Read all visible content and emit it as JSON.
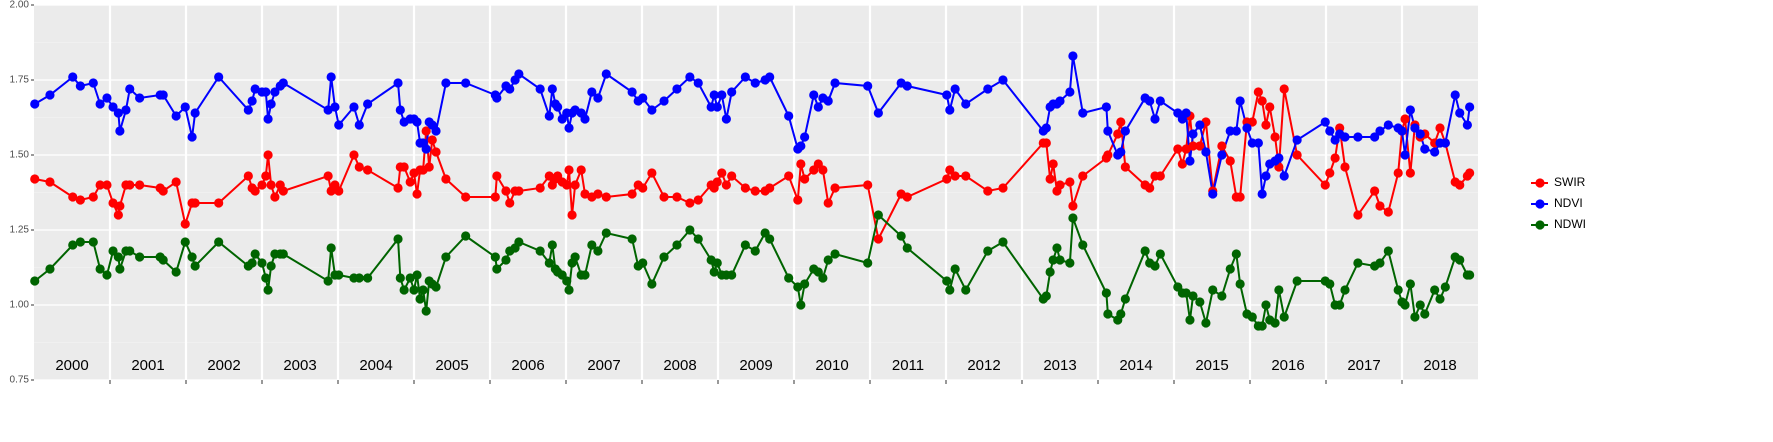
{
  "chart_data": {
    "type": "line",
    "x": [
      2000.01,
      2000.21,
      2000.51,
      2000.61,
      2000.78,
      2000.87,
      2000.96,
      2001.04,
      2001.11,
      2001.13,
      2001.21,
      2001.26,
      2001.39,
      2001.66,
      2001.7,
      2001.87,
      2001.99,
      2002.08,
      2002.12,
      2002.43,
      2002.82,
      2002.87,
      2002.91,
      2003.0,
      2003.05,
      2003.08,
      2003.12,
      2003.17,
      2003.24,
      2003.28,
      2003.87,
      2003.91,
      2003.96,
      2004.01,
      2004.21,
      2004.28,
      2004.39,
      2004.79,
      2004.82,
      2004.87,
      2004.95,
      2005.0,
      2005.04,
      2005.08,
      2005.12,
      2005.16,
      2005.2,
      2005.24,
      2005.29,
      2005.42,
      2005.68,
      2006.07,
      2006.09,
      2006.21,
      2006.26,
      2006.33,
      2006.38,
      2006.66,
      2006.78,
      2006.82,
      2006.86,
      2006.89,
      2006.95,
      2007.01,
      2007.04,
      2007.08,
      2007.12,
      2007.2,
      2007.25,
      2007.34,
      2007.42,
      2007.53,
      2007.87,
      2007.95,
      2008.01,
      2008.13,
      2008.29,
      2008.46,
      2008.63,
      2008.74,
      2008.91,
      2008.95,
      2008.99,
      2009.05,
      2009.11,
      2009.18,
      2009.36,
      2009.49,
      2009.62,
      2009.68,
      2009.93,
      2010.05,
      2010.09,
      2010.14,
      2010.26,
      2010.32,
      2010.38,
      2010.45,
      2010.54,
      2010.97,
      2011.11,
      2011.41,
      2011.49,
      2012.01,
      2012.05,
      2012.12,
      2012.26,
      2012.55,
      2012.75,
      2013.28,
      2013.32,
      2013.37,
      2013.41,
      2013.46,
      2013.5,
      2013.63,
      2013.67,
      2013.8,
      2014.11,
      2014.13,
      2014.26,
      2014.3,
      2014.36,
      2014.62,
      2014.68,
      2014.75,
      2014.82,
      2015.05,
      2015.11,
      2015.16,
      2015.21,
      2015.25,
      2015.34,
      2015.42,
      2015.51,
      2015.63,
      2015.74,
      2015.82,
      2015.87,
      2015.96,
      2016.03,
      2016.11,
      2016.16,
      2016.21,
      2016.26,
      2016.33,
      2016.38,
      2016.45,
      2016.62,
      2016.99,
      2017.05,
      2017.12,
      2017.18,
      2017.25,
      2017.42,
      2017.64,
      2017.71,
      2017.82,
      2017.95,
      2018.0,
      2018.04,
      2018.11,
      2018.17,
      2018.24,
      2018.3,
      2018.43,
      2018.5,
      2018.57,
      2018.7,
      2018.76,
      2018.86,
      2018.89
    ],
    "series": [
      {
        "name": "SWIR",
        "color": "#ff0000",
        "values": [
          1.42,
          1.41,
          1.36,
          1.35,
          1.36,
          1.4,
          1.4,
          1.34,
          1.3,
          1.33,
          1.4,
          1.4,
          1.4,
          1.39,
          1.38,
          1.41,
          1.27,
          1.34,
          1.34,
          1.34,
          1.43,
          1.39,
          1.38,
          1.4,
          1.43,
          1.5,
          1.4,
          1.36,
          1.4,
          1.38,
          1.43,
          1.38,
          1.4,
          1.38,
          1.5,
          1.46,
          1.45,
          1.39,
          1.46,
          1.46,
          1.41,
          1.44,
          1.37,
          1.45,
          1.45,
          1.58,
          1.46,
          1.55,
          1.51,
          1.42,
          1.36,
          1.36,
          1.43,
          1.38,
          1.34,
          1.38,
          1.38,
          1.39,
          1.43,
          1.4,
          1.42,
          1.43,
          1.41,
          1.4,
          1.45,
          1.3,
          1.4,
          1.45,
          1.37,
          1.36,
          1.37,
          1.36,
          1.37,
          1.4,
          1.39,
          1.44,
          1.36,
          1.36,
          1.34,
          1.35,
          1.4,
          1.39,
          1.41,
          1.44,
          1.4,
          1.43,
          1.39,
          1.38,
          1.38,
          1.39,
          1.43,
          1.35,
          1.47,
          1.42,
          1.45,
          1.47,
          1.45,
          1.34,
          1.39,
          1.4,
          1.22,
          1.37,
          1.36,
          1.42,
          1.45,
          1.43,
          1.43,
          1.38,
          1.39,
          1.54,
          1.54,
          1.42,
          1.47,
          1.38,
          1.4,
          1.41,
          1.33,
          1.43,
          1.49,
          1.5,
          1.57,
          1.61,
          1.46,
          1.4,
          1.39,
          1.43,
          1.43,
          1.52,
          1.47,
          1.52,
          1.63,
          1.53,
          1.53,
          1.61,
          1.38,
          1.53,
          1.48,
          1.36,
          1.36,
          1.61,
          1.61,
          1.71,
          1.68,
          1.6,
          1.66,
          1.56,
          1.46,
          1.72,
          1.5,
          1.4,
          1.44,
          1.49,
          1.59,
          1.46,
          1.3,
          1.38,
          1.33,
          1.31,
          1.44,
          1.58,
          1.62,
          1.44,
          1.6,
          1.56,
          1.57,
          1.54,
          1.59,
          1.54,
          1.41,
          1.4,
          1.43,
          1.44
        ]
      },
      {
        "name": "NDVI",
        "color": "#0000ff",
        "values": [
          1.67,
          1.7,
          1.76,
          1.73,
          1.74,
          1.67,
          1.69,
          1.66,
          1.64,
          1.58,
          1.65,
          1.72,
          1.69,
          1.7,
          1.7,
          1.63,
          1.66,
          1.56,
          1.64,
          1.76,
          1.65,
          1.68,
          1.72,
          1.71,
          1.71,
          1.62,
          1.67,
          1.71,
          1.73,
          1.74,
          1.65,
          1.76,
          1.66,
          1.6,
          1.66,
          1.6,
          1.67,
          1.74,
          1.65,
          1.61,
          1.62,
          1.62,
          1.61,
          1.54,
          1.54,
          1.52,
          1.61,
          1.6,
          1.58,
          1.74,
          1.74,
          1.7,
          1.69,
          1.73,
          1.72,
          1.75,
          1.77,
          1.72,
          1.63,
          1.72,
          1.67,
          1.66,
          1.62,
          1.64,
          1.59,
          1.64,
          1.65,
          1.64,
          1.62,
          1.71,
          1.69,
          1.77,
          1.71,
          1.68,
          1.69,
          1.65,
          1.68,
          1.72,
          1.76,
          1.74,
          1.66,
          1.7,
          1.66,
          1.7,
          1.62,
          1.71,
          1.76,
          1.74,
          1.75,
          1.76,
          1.63,
          1.52,
          1.53,
          1.56,
          1.7,
          1.66,
          1.69,
          1.68,
          1.74,
          1.73,
          1.64,
          1.74,
          1.73,
          1.7,
          1.65,
          1.72,
          1.67,
          1.72,
          1.75,
          1.58,
          1.59,
          1.66,
          1.67,
          1.67,
          1.68,
          1.71,
          1.83,
          1.64,
          1.66,
          1.58,
          1.5,
          1.51,
          1.58,
          1.69,
          1.68,
          1.62,
          1.68,
          1.64,
          1.62,
          1.64,
          1.48,
          1.57,
          1.6,
          1.51,
          1.37,
          1.5,
          1.58,
          1.58,
          1.68,
          1.59,
          1.54,
          1.54,
          1.37,
          1.43,
          1.47,
          1.48,
          1.49,
          1.43,
          1.55,
          1.61,
          1.58,
          1.55,
          1.57,
          1.56,
          1.56,
          1.56,
          1.58,
          1.6,
          1.59,
          1.58,
          1.5,
          1.65,
          1.59,
          1.57,
          1.52,
          1.51,
          1.54,
          1.54,
          1.7,
          1.64,
          1.6,
          1.66
        ]
      },
      {
        "name": "NDWI",
        "color": "#006400",
        "values": [
          1.08,
          1.12,
          1.2,
          1.21,
          1.21,
          1.12,
          1.1,
          1.18,
          1.16,
          1.12,
          1.18,
          1.18,
          1.16,
          1.16,
          1.15,
          1.11,
          1.21,
          1.16,
          1.13,
          1.21,
          1.13,
          1.14,
          1.17,
          1.14,
          1.09,
          1.05,
          1.13,
          1.17,
          1.17,
          1.17,
          1.08,
          1.19,
          1.1,
          1.1,
          1.09,
          1.09,
          1.09,
          1.22,
          1.09,
          1.05,
          1.09,
          1.05,
          1.1,
          1.02,
          1.05,
          0.98,
          1.08,
          1.07,
          1.06,
          1.16,
          1.23,
          1.16,
          1.12,
          1.15,
          1.18,
          1.19,
          1.21,
          1.18,
          1.14,
          1.2,
          1.12,
          1.11,
          1.1,
          1.08,
          1.05,
          1.14,
          1.16,
          1.1,
          1.1,
          1.2,
          1.18,
          1.24,
          1.22,
          1.13,
          1.14,
          1.07,
          1.16,
          1.2,
          1.25,
          1.22,
          1.15,
          1.11,
          1.14,
          1.1,
          1.1,
          1.1,
          1.2,
          1.18,
          1.24,
          1.22,
          1.09,
          1.06,
          1.0,
          1.07,
          1.12,
          1.11,
          1.09,
          1.15,
          1.17,
          1.14,
          1.3,
          1.23,
          1.19,
          1.08,
          1.05,
          1.12,
          1.05,
          1.18,
          1.21,
          1.02,
          1.03,
          1.11,
          1.15,
          1.19,
          1.15,
          1.14,
          1.29,
          1.2,
          1.04,
          0.97,
          0.95,
          0.97,
          1.02,
          1.18,
          1.14,
          1.13,
          1.17,
          1.06,
          1.04,
          1.04,
          0.95,
          1.03,
          1.01,
          0.94,
          1.05,
          1.03,
          1.12,
          1.17,
          1.07,
          0.97,
          0.96,
          0.93,
          0.93,
          1.0,
          0.95,
          0.94,
          1.05,
          0.96,
          1.08,
          1.08,
          1.07,
          1.0,
          1.0,
          1.05,
          1.14,
          1.13,
          1.14,
          1.18,
          1.05,
          1.01,
          1.0,
          1.07,
          0.96,
          1.0,
          0.97,
          1.05,
          1.02,
          1.06,
          1.16,
          1.15,
          1.1,
          1.1
        ]
      }
    ],
    "xlim": [
      2000,
      2019
    ],
    "year_boundaries": [
      2001,
      2002,
      2003,
      2004,
      2005,
      2006,
      2007,
      2008,
      2009,
      2010,
      2011,
      2012,
      2013,
      2014,
      2015,
      2016,
      2017,
      2018
    ],
    "year_labels": [
      {
        "value": 2000.5,
        "label": "2000"
      },
      {
        "value": 2001.5,
        "label": "2001"
      },
      {
        "value": 2002.5,
        "label": "2002"
      },
      {
        "value": 2003.5,
        "label": "2003"
      },
      {
        "value": 2004.5,
        "label": "2004"
      },
      {
        "value": 2005.5,
        "label": "2005"
      },
      {
        "value": 2006.5,
        "label": "2006"
      },
      {
        "value": 2007.5,
        "label": "2007"
      },
      {
        "value": 2008.5,
        "label": "2008"
      },
      {
        "value": 2009.5,
        "label": "2009"
      },
      {
        "value": 2010.5,
        "label": "2010"
      },
      {
        "value": 2011.5,
        "label": "2011"
      },
      {
        "value": 2012.5,
        "label": "2012"
      },
      {
        "value": 2013.5,
        "label": "2013"
      },
      {
        "value": 2014.5,
        "label": "2014"
      },
      {
        "value": 2015.5,
        "label": "2015"
      },
      {
        "value": 2016.5,
        "label": "2016"
      },
      {
        "value": 2017.5,
        "label": "2017"
      },
      {
        "value": 2018.5,
        "label": "2018"
      }
    ],
    "ylim": [
      0.75,
      2.0
    ],
    "yticks": [
      {
        "value": 0.75,
        "label": "0.75"
      },
      {
        "value": 1.0,
        "label": "1.00"
      },
      {
        "value": 1.25,
        "label": "1.25"
      },
      {
        "value": 1.5,
        "label": "1.50"
      },
      {
        "value": 1.75,
        "label": "1.75"
      },
      {
        "value": 2.0,
        "label": "2.00"
      }
    ],
    "grid": true,
    "legend": "right"
  }
}
